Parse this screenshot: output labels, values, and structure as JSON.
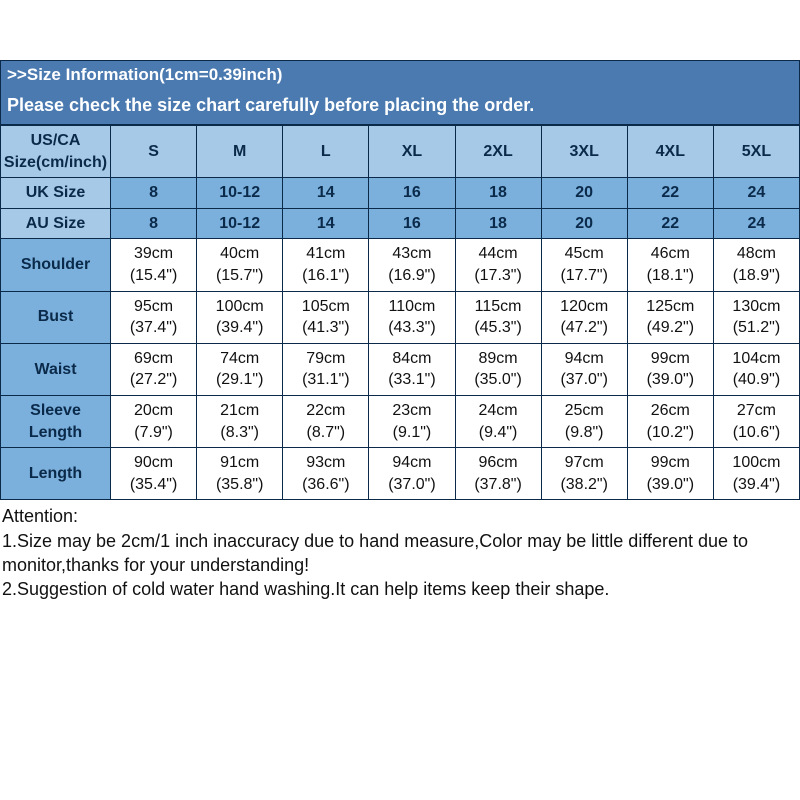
{
  "title": ">>Size Information(1cm=0.39inch)",
  "notice": "Please check the size chart carefully before placing the order.",
  "header": {
    "firstCol": "US/CA Size(cm/inch)",
    "sizes": [
      "S",
      "M",
      "L",
      "XL",
      "2XL",
      "3XL",
      "4XL",
      "5XL"
    ]
  },
  "regionRows": [
    {
      "label": "UK Size",
      "values": [
        "8",
        "10-12",
        "14",
        "16",
        "18",
        "20",
        "22",
        "24"
      ]
    },
    {
      "label": "AU Size",
      "values": [
        "8",
        "10-12",
        "14",
        "16",
        "18",
        "20",
        "22",
        "24"
      ]
    }
  ],
  "measureRows": [
    {
      "label": "Shoulder",
      "cells": [
        {
          "cm": "39cm",
          "in": "(15.4\")"
        },
        {
          "cm": "40cm",
          "in": "(15.7\")"
        },
        {
          "cm": "41cm",
          "in": "(16.1\")"
        },
        {
          "cm": "43cm",
          "in": "(16.9\")"
        },
        {
          "cm": "44cm",
          "in": "(17.3\")"
        },
        {
          "cm": "45cm",
          "in": "(17.7\")"
        },
        {
          "cm": "46cm",
          "in": "(18.1\")"
        },
        {
          "cm": "48cm",
          "in": "(18.9\")"
        }
      ]
    },
    {
      "label": "Bust",
      "cells": [
        {
          "cm": "95cm",
          "in": "(37.4\")"
        },
        {
          "cm": "100cm",
          "in": "(39.4\")"
        },
        {
          "cm": "105cm",
          "in": "(41.3\")"
        },
        {
          "cm": "110cm",
          "in": "(43.3\")"
        },
        {
          "cm": "115cm",
          "in": "(45.3\")"
        },
        {
          "cm": "120cm",
          "in": "(47.2\")"
        },
        {
          "cm": "125cm",
          "in": "(49.2\")"
        },
        {
          "cm": "130cm",
          "in": "(51.2\")"
        }
      ]
    },
    {
      "label": "Waist",
      "cells": [
        {
          "cm": "69cm",
          "in": "(27.2\")"
        },
        {
          "cm": "74cm",
          "in": "(29.1\")"
        },
        {
          "cm": "79cm",
          "in": "(31.1\")"
        },
        {
          "cm": "84cm",
          "in": "(33.1\")"
        },
        {
          "cm": "89cm",
          "in": "(35.0\")"
        },
        {
          "cm": "94cm",
          "in": "(37.0\")"
        },
        {
          "cm": "99cm",
          "in": "(39.0\")"
        },
        {
          "cm": "104cm",
          "in": "(40.9\")"
        }
      ]
    },
    {
      "label": "Sleeve Length",
      "cells": [
        {
          "cm": "20cm",
          "in": "(7.9\")"
        },
        {
          "cm": "21cm",
          "in": "(8.3\")"
        },
        {
          "cm": "22cm",
          "in": "(8.7\")"
        },
        {
          "cm": "23cm",
          "in": "(9.1\")"
        },
        {
          "cm": "24cm",
          "in": "(9.4\")"
        },
        {
          "cm": "25cm",
          "in": "(9.8\")"
        },
        {
          "cm": "26cm",
          "in": "(10.2\")"
        },
        {
          "cm": "27cm",
          "in": "(10.6\")"
        }
      ]
    },
    {
      "label": "Length",
      "cells": [
        {
          "cm": "90cm",
          "in": "(35.4\")"
        },
        {
          "cm": "91cm",
          "in": "(35.8\")"
        },
        {
          "cm": "93cm",
          "in": "(36.6\")"
        },
        {
          "cm": "94cm",
          "in": "(37.0\")"
        },
        {
          "cm": "96cm",
          "in": "(37.8\")"
        },
        {
          "cm": "97cm",
          "in": "(38.2\")"
        },
        {
          "cm": "99cm",
          "in": "(39.0\")"
        },
        {
          "cm": "100cm",
          "in": "(39.4\")"
        }
      ]
    }
  ],
  "attention": {
    "heading": "Attention:",
    "line1": "1.Size may be 2cm/1 inch inaccuracy due to hand measure,Color may be little different due to monitor,thanks for your understanding!",
    "line2": "2.Suggestion of cold water hand washing.It can help items keep their shape."
  },
  "colors": {
    "bar": "#4a7ab0",
    "headerRow": "#a7c9e8",
    "subRow": "#7bb0dd",
    "border": "#0b2a4a"
  }
}
